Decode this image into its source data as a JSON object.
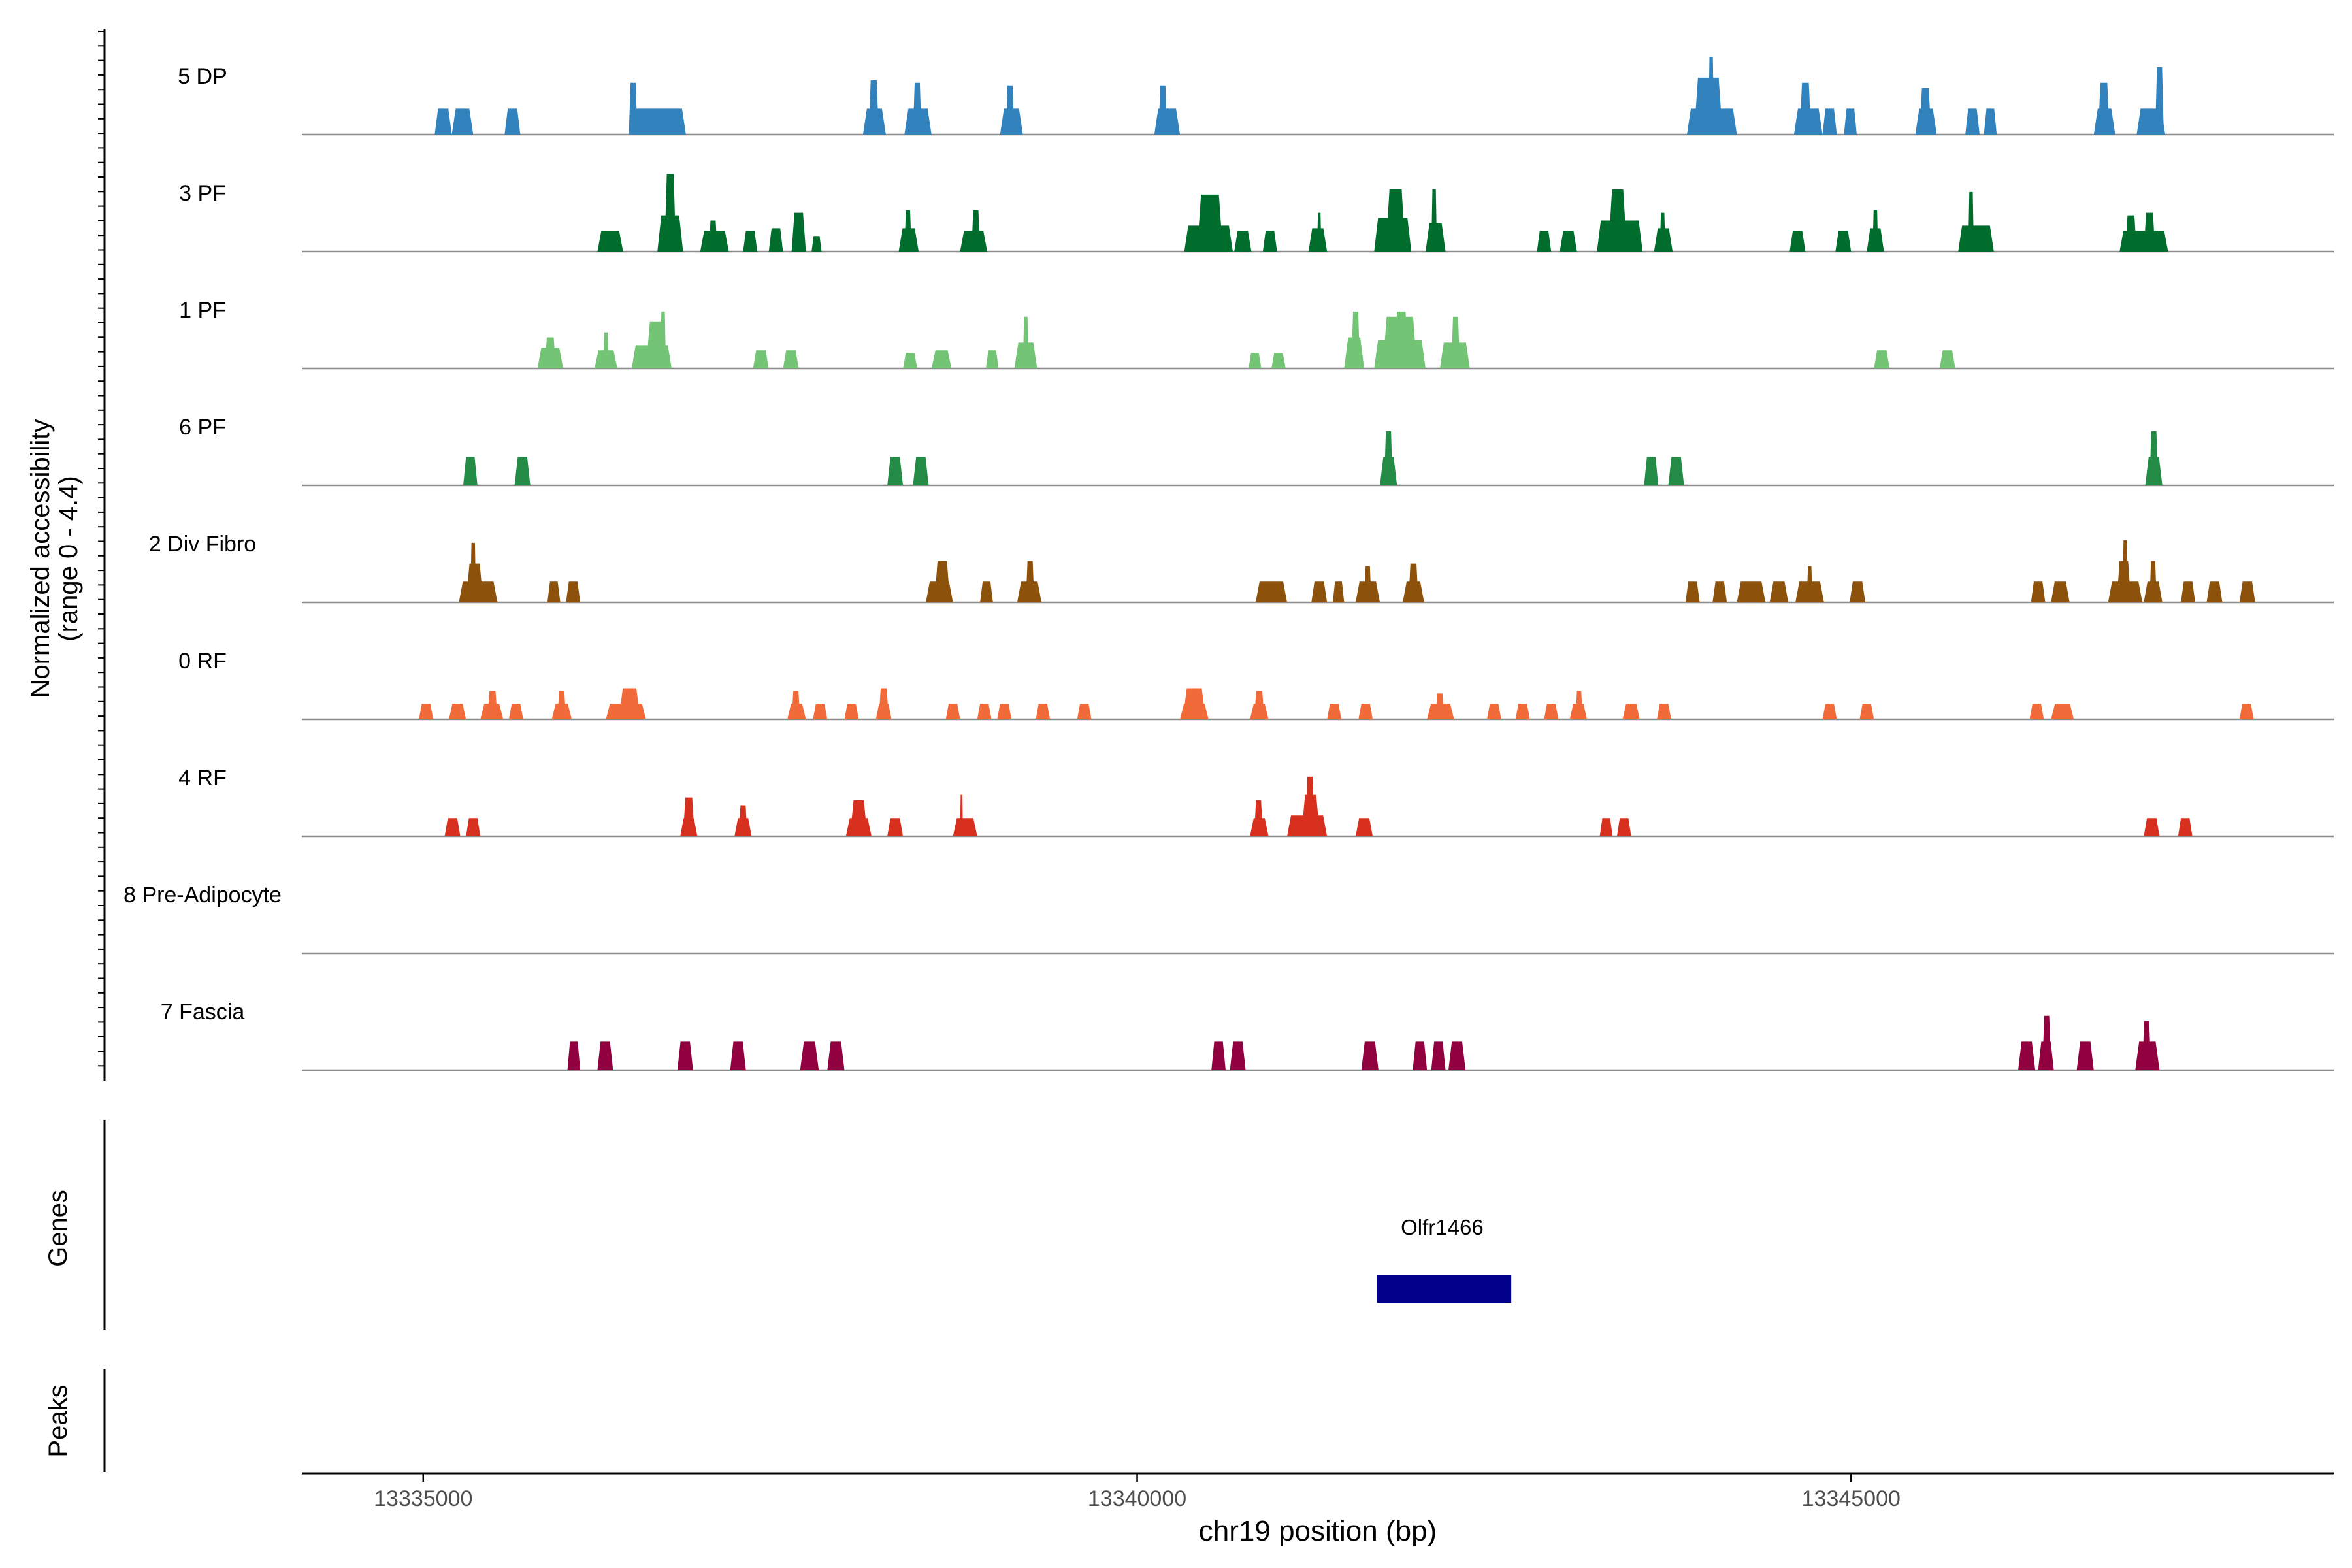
{
  "chart_data": {
    "type": "area",
    "title": "",
    "chromosome": "chr19",
    "xlabel": "chr19 position (bp)",
    "ylabel_line1": "Normalized accessibility",
    "ylabel_line2": "(range 0 - 4.4)",
    "ylim": [
      0,
      4.4
    ],
    "xlim": [
      13334150,
      13348380
    ],
    "x_ticks": [
      13335000,
      13340000,
      13345000
    ],
    "x_tick_labels": [
      "13335000",
      "13340000",
      "13345000"
    ],
    "tracks_panel_label": "Genes",
    "peaks_panel_label": "Peaks",
    "genes": [
      {
        "name": "Olfr1466",
        "start": 13341680,
        "end": 13342620,
        "color": "#00008B"
      }
    ],
    "series": [
      {
        "name": "5 DP",
        "color": "#3182BD",
        "peaks": [
          [
            13335080,
            13335200,
            1.0
          ],
          [
            13335200,
            13335350,
            1.0
          ],
          [
            13335570,
            13335680,
            1.0
          ],
          [
            13336440,
            13336840,
            1.0
          ],
          [
            13336440,
            13336500,
            2.0
          ],
          [
            13338080,
            13338240,
            1.0
          ],
          [
            13338120,
            13338190,
            2.1
          ],
          [
            13338370,
            13338560,
            1.0
          ],
          [
            13338430,
            13338490,
            2.0
          ],
          [
            13339040,
            13339200,
            1.0
          ],
          [
            13339080,
            13339140,
            1.9
          ],
          [
            13340120,
            13340300,
            1.0
          ],
          [
            13340150,
            13340210,
            1.9
          ],
          [
            13343850,
            13344200,
            1.0
          ],
          [
            13343900,
            13344100,
            2.2
          ],
          [
            13344000,
            13344040,
            3.0
          ],
          [
            13344600,
            13344800,
            1.0
          ],
          [
            13344640,
            13344720,
            2.0
          ],
          [
            13344800,
            13344900,
            1.0
          ],
          [
            13344950,
            13345040,
            1.0
          ],
          [
            13345450,
            13345600,
            1.0
          ],
          [
            13345480,
            13345560,
            1.8
          ],
          [
            13345800,
            13345900,
            1.0
          ],
          [
            13345930,
            13346020,
            1.0
          ],
          [
            13346700,
            13346850,
            1.0
          ],
          [
            13346730,
            13346810,
            2.0
          ],
          [
            13347000,
            13347200,
            1.0
          ],
          [
            13347130,
            13347190,
            2.6
          ]
        ]
      },
      {
        "name": "3 PF",
        "color": "#006D2C",
        "peaks": [
          [
            13336220,
            13336400,
            0.8
          ],
          [
            13336640,
            13336820,
            1.4
          ],
          [
            13336690,
            13336770,
            3.0
          ],
          [
            13336940,
            13337140,
            0.8
          ],
          [
            13337000,
            13337060,
            1.2
          ],
          [
            13337240,
            13337340,
            0.8
          ],
          [
            13337420,
            13337520,
            0.9
          ],
          [
            13337580,
            13337680,
            1.5
          ],
          [
            13337720,
            13337790,
            0.6
          ],
          [
            13338330,
            13338470,
            0.9
          ],
          [
            13338370,
            13338420,
            1.6
          ],
          [
            13338760,
            13338950,
            0.8
          ],
          [
            13338840,
            13338900,
            1.6
          ],
          [
            13340330,
            13340670,
            1.0
          ],
          [
            13340420,
            13340600,
            2.2
          ],
          [
            13340680,
            13340800,
            0.8
          ],
          [
            13340880,
            13340980,
            0.8
          ],
          [
            13341200,
            13341330,
            0.9
          ],
          [
            13341260,
            13341290,
            1.5
          ],
          [
            13341660,
            13341920,
            1.3
          ],
          [
            13341740,
            13341880,
            2.4
          ],
          [
            13342020,
            13342160,
            1.1
          ],
          [
            13342060,
            13342100,
            2.4
          ],
          [
            13342800,
            13342900,
            0.8
          ],
          [
            13342960,
            13343080,
            0.8
          ],
          [
            13343220,
            13343540,
            1.2
          ],
          [
            13343300,
            13343430,
            2.4
          ],
          [
            13343620,
            13343750,
            0.9
          ],
          [
            13343660,
            13343700,
            1.5
          ],
          [
            13344570,
            13344680,
            0.8
          ],
          [
            13344890,
            13345000,
            0.8
          ],
          [
            13345110,
            13345230,
            0.9
          ],
          [
            13345150,
            13345190,
            1.6
          ],
          [
            13345750,
            13346000,
            1.0
          ],
          [
            13345820,
            13345860,
            2.3
          ],
          [
            13346880,
            13347220,
            0.8
          ],
          [
            13347050,
            13347130,
            1.5
          ],
          [
            13346920,
            13347000,
            1.4
          ]
        ]
      },
      {
        "name": "1 PF",
        "color": "#74C476",
        "peaks": [
          [
            13335800,
            13335980,
            0.8
          ],
          [
            13335850,
            13335930,
            1.2
          ],
          [
            13336200,
            13336360,
            0.7
          ],
          [
            13336260,
            13336300,
            1.4
          ],
          [
            13336460,
            13336740,
            0.9
          ],
          [
            13336560,
            13336700,
            1.8
          ],
          [
            13336660,
            13336700,
            2.2
          ],
          [
            13337310,
            13337420,
            0.7
          ],
          [
            13337520,
            13337630,
            0.7
          ],
          [
            13338360,
            13338460,
            0.6
          ],
          [
            13338560,
            13338700,
            0.7
          ],
          [
            13338940,
            13339030,
            0.7
          ],
          [
            13339140,
            13339300,
            1.0
          ],
          [
            13339200,
            13339240,
            2.0
          ],
          [
            13340780,
            13340870,
            0.6
          ],
          [
            13340940,
            13341040,
            0.6
          ],
          [
            13341450,
            13341590,
            1.2
          ],
          [
            13341500,
            13341560,
            2.2
          ],
          [
            13341660,
            13342020,
            1.1
          ],
          [
            13341720,
            13341960,
            2.0
          ],
          [
            13341800,
            13341900,
            2.2
          ],
          [
            13342120,
            13342330,
            1.0
          ],
          [
            13342200,
            13342260,
            2.0
          ],
          [
            13345160,
            13345270,
            0.7
          ],
          [
            13345620,
            13345730,
            0.7
          ]
        ]
      },
      {
        "name": "6 PF",
        "color": "#238B45",
        "peaks": [
          [
            13335280,
            13335380,
            1.1
          ],
          [
            13335640,
            13335750,
            1.1
          ],
          [
            13338250,
            13338360,
            1.1
          ],
          [
            13338430,
            13338540,
            1.1
          ],
          [
            13341700,
            13341820,
            1.1
          ],
          [
            13341730,
            13341790,
            2.1
          ],
          [
            13343550,
            13343650,
            1.1
          ],
          [
            13343720,
            13343830,
            1.1
          ],
          [
            13347060,
            13347180,
            1.1
          ],
          [
            13347090,
            13347150,
            2.1
          ]
        ]
      },
      {
        "name": "2 Div Fibro",
        "color": "#8C510A",
        "peaks": [
          [
            13335250,
            13335520,
            0.8
          ],
          [
            13335300,
            13335420,
            1.5
          ],
          [
            13335330,
            13335370,
            2.3
          ],
          [
            13335870,
            13335960,
            0.8
          ],
          [
            13336000,
            13336100,
            0.8
          ],
          [
            13338520,
            13338710,
            0.8
          ],
          [
            13338580,
            13338690,
            1.6
          ],
          [
            13338900,
            13338990,
            0.8
          ],
          [
            13339160,
            13339330,
            0.8
          ],
          [
            13339220,
            13339280,
            1.6
          ],
          [
            13340830,
            13341050,
            0.8
          ],
          [
            13341220,
            13341330,
            0.8
          ],
          [
            13341370,
            13341450,
            0.8
          ],
          [
            13341530,
            13341700,
            0.8
          ],
          [
            13341590,
            13341640,
            1.4
          ],
          [
            13341860,
            13342010,
            0.8
          ],
          [
            13341900,
            13341970,
            1.5
          ],
          [
            13343840,
            13343940,
            0.8
          ],
          [
            13344030,
            13344130,
            0.8
          ],
          [
            13344200,
            13344400,
            0.8
          ],
          [
            13344430,
            13344560,
            0.8
          ],
          [
            13344610,
            13344810,
            0.8
          ],
          [
            13344690,
            13344730,
            1.4
          ],
          [
            13344990,
            13345100,
            0.8
          ],
          [
            13346260,
            13346360,
            0.8
          ],
          [
            13346400,
            13346530,
            0.8
          ],
          [
            13346800,
            13347040,
            0.8
          ],
          [
            13346860,
            13346960,
            1.6
          ],
          [
            13346900,
            13346940,
            2.4
          ],
          [
            13347050,
            13347180,
            0.8
          ],
          [
            13347090,
            13347140,
            1.6
          ],
          [
            13347310,
            13347410,
            0.8
          ],
          [
            13347490,
            13347600,
            0.8
          ],
          [
            13347720,
            13347830,
            0.8
          ]
        ]
      },
      {
        "name": "0 RF",
        "color": "#F16A3A",
        "peaks": [
          [
            13334970,
            13335070,
            0.6
          ],
          [
            13335180,
            13335300,
            0.6
          ],
          [
            13335400,
            13335560,
            0.6
          ],
          [
            13335450,
            13335520,
            1.1
          ],
          [
            13335600,
            13335700,
            0.6
          ],
          [
            13335900,
            13336040,
            0.6
          ],
          [
            13335940,
            13336000,
            1.1
          ],
          [
            13336280,
            13336560,
            0.6
          ],
          [
            13336370,
            13336520,
            1.2
          ],
          [
            13337550,
            13337680,
            0.6
          ],
          [
            13337580,
            13337640,
            1.1
          ],
          [
            13337730,
            13337830,
            0.6
          ],
          [
            13337950,
            13338050,
            0.6
          ],
          [
            13338170,
            13338280,
            0.6
          ],
          [
            13338190,
            13338260,
            1.2
          ],
          [
            13338660,
            13338760,
            0.6
          ],
          [
            13338880,
            13338980,
            0.6
          ],
          [
            13339020,
            13339120,
            0.6
          ],
          [
            13339290,
            13339390,
            0.6
          ],
          [
            13339580,
            13339680,
            0.6
          ],
          [
            13340300,
            13340500,
            0.6
          ],
          [
            13340320,
            13340480,
            1.2
          ],
          [
            13340790,
            13340920,
            0.6
          ],
          [
            13340820,
            13340890,
            1.1
          ],
          [
            13341330,
            13341430,
            0.6
          ],
          [
            13341550,
            13341650,
            0.6
          ],
          [
            13342030,
            13342220,
            0.6
          ],
          [
            13342090,
            13342150,
            1.0
          ],
          [
            13342450,
            13342550,
            0.6
          ],
          [
            13342650,
            13342750,
            0.6
          ],
          [
            13342850,
            13342950,
            0.6
          ],
          [
            13343030,
            13343150,
            0.6
          ],
          [
            13343070,
            13343120,
            1.1
          ],
          [
            13343400,
            13343520,
            0.6
          ],
          [
            13343640,
            13343740,
            0.6
          ],
          [
            13344800,
            13344900,
            0.6
          ],
          [
            13345060,
            13345160,
            0.6
          ],
          [
            13346250,
            13346350,
            0.6
          ],
          [
            13346400,
            13346560,
            0.6
          ],
          [
            13347720,
            13347820,
            0.6
          ]
        ]
      },
      {
        "name": "4 RF",
        "color": "#D7301F",
        "peaks": [
          [
            13335150,
            13335260,
            0.7
          ],
          [
            13335300,
            13335400,
            0.7
          ],
          [
            13336800,
            13336920,
            0.7
          ],
          [
            13336820,
            13336900,
            1.5
          ],
          [
            13337180,
            13337300,
            0.7
          ],
          [
            13337210,
            13337270,
            1.2
          ],
          [
            13337960,
            13338140,
            0.7
          ],
          [
            13337990,
            13338110,
            1.4
          ],
          [
            13338250,
            13338360,
            0.7
          ],
          [
            13338710,
            13338880,
            0.7
          ],
          [
            13338760,
            13338780,
            1.6
          ],
          [
            13340790,
            13340920,
            0.7
          ],
          [
            13340820,
            13340880,
            1.4
          ],
          [
            13341050,
            13341330,
            0.8
          ],
          [
            13341150,
            13341280,
            1.6
          ],
          [
            13341180,
            13341240,
            2.3
          ],
          [
            13341530,
            13341650,
            0.7
          ],
          [
            13343240,
            13343330,
            0.7
          ],
          [
            13343360,
            13343460,
            0.7
          ],
          [
            13347050,
            13347160,
            0.7
          ],
          [
            13347290,
            13347390,
            0.7
          ]
        ]
      },
      {
        "name": "8 Pre-Adipocyte",
        "color": "#6A51A3",
        "peaks": []
      },
      {
        "name": "7 Fascia",
        "color": "#91003F",
        "peaks": [
          [
            13336010,
            13336100,
            1.1
          ],
          [
            13336220,
            13336330,
            1.1
          ],
          [
            13336780,
            13336890,
            1.1
          ],
          [
            13337150,
            13337260,
            1.1
          ],
          [
            13337640,
            13337770,
            1.1
          ],
          [
            13337830,
            13337950,
            1.1
          ],
          [
            13340520,
            13340620,
            1.1
          ],
          [
            13340650,
            13340760,
            1.1
          ],
          [
            13341570,
            13341690,
            1.1
          ],
          [
            13341930,
            13342030,
            1.1
          ],
          [
            13342060,
            13342160,
            1.1
          ],
          [
            13342180,
            13342300,
            1.1
          ],
          [
            13346170,
            13346290,
            1.1
          ],
          [
            13346310,
            13346420,
            1.1
          ],
          [
            13346340,
            13346400,
            2.1
          ],
          [
            13346580,
            13346700,
            1.1
          ],
          [
            13346990,
            13347160,
            1.1
          ],
          [
            13347040,
            13347100,
            1.9
          ]
        ]
      }
    ]
  }
}
